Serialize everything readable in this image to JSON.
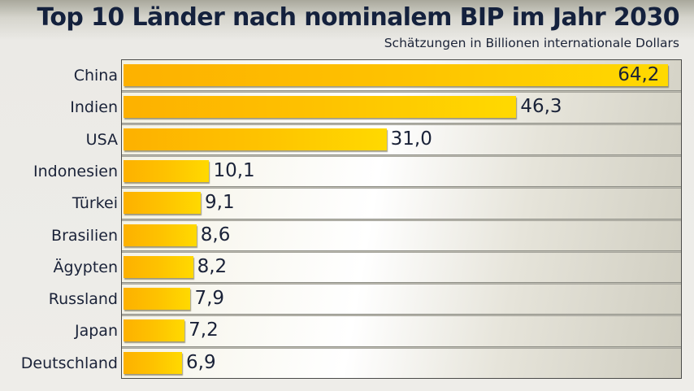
{
  "chart_data": {
    "type": "bar",
    "orientation": "horizontal",
    "title": "Top 10 Länder nach nominalem BIP im Jahr 2030",
    "subtitle": "Schätzungen in Billionen internationale Dollars",
    "xlabel": "",
    "ylabel": "",
    "categories": [
      "China",
      "Indien",
      "USA",
      "Indonesien",
      "Türkei",
      "Brasilien",
      "Ägypten",
      "Russland",
      "Japan",
      "Deutschland"
    ],
    "values": [
      64.2,
      46.3,
      31.0,
      10.1,
      9.1,
      8.6,
      8.2,
      7.9,
      7.2,
      6.9
    ],
    "value_labels": [
      "64,2",
      "46,3",
      "31,0",
      "10,1",
      "9,1",
      "8,6",
      "8,2",
      "7,9",
      "7,2",
      "6,9"
    ],
    "xlim": [
      0,
      66
    ],
    "grid": false,
    "legend": "none",
    "colors": {
      "bar_start": "#fdb100",
      "bar_end": "#ffd900",
      "text": "#1a2238",
      "title": "#14213d"
    }
  }
}
